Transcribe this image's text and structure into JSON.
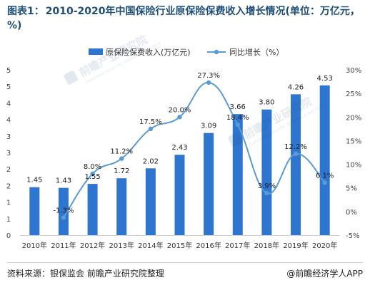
{
  "title": {
    "prefix": "图表1：",
    "text": "2010-2020年中国保险行业原保险保费收入增长情况(单位：万亿元，%)"
  },
  "footer": {
    "source": "资料来源：银保监会 前瞻产业研究院整理",
    "brand": "@前瞻经济学人APP"
  },
  "watermark": {
    "brand": "前瞻产业研究院",
    "sub": "QIANZHAN INDUSTRY RESEARCH INSTITUTE"
  },
  "chart_data": {
    "type": "bar",
    "categories": [
      "2010年",
      "2011年",
      "2012年",
      "2013年",
      "2014年",
      "2015年",
      "2016年",
      "2017年",
      "2018年",
      "2019年",
      "2020年"
    ],
    "series": [
      {
        "name": "原保险保费收入(万亿元)",
        "type": "bar",
        "axis": "left",
        "values": [
          1.45,
          1.43,
          1.55,
          1.72,
          2.02,
          2.43,
          3.09,
          3.66,
          3.8,
          4.26,
          4.53
        ],
        "labels": [
          "1.45",
          "1.43",
          "1.55",
          "1.72",
          "2.02",
          "2.43",
          "3.09",
          "3.66",
          "3.80",
          "4.26",
          "4.53"
        ],
        "color": "#2e75d0"
      },
      {
        "name": "同比增长（%）",
        "type": "line",
        "axis": "right",
        "values": [
          null,
          -1.3,
          8.0,
          11.2,
          17.5,
          20.0,
          27.3,
          18.4,
          3.9,
          12.2,
          6.1
        ],
        "labels": [
          "",
          "-1.3%",
          "8.0%",
          "11.2%",
          "17.5%",
          "20.0%",
          "27.3%",
          "18.4%",
          "3.9%",
          "12.2%",
          "6.1%"
        ],
        "color": "#5b9bd5"
      }
    ],
    "left_axis": {
      "ylim": [
        0,
        5
      ],
      "ticks": [
        0,
        0.5,
        1,
        1.5,
        2,
        2.5,
        3,
        3.5,
        4,
        4.5,
        5
      ],
      "tick_labels": [
        "0",
        "1",
        "1",
        "2",
        "2",
        "3",
        "3",
        "4",
        "4",
        "5",
        "5"
      ]
    },
    "right_axis": {
      "ylim": [
        -5,
        30
      ],
      "ticks": [
        -5,
        0,
        5,
        10,
        15,
        20,
        25,
        30
      ],
      "tick_labels": [
        "-5%",
        "0%",
        "5%",
        "10%",
        "15%",
        "20%",
        "25%",
        "30%"
      ]
    },
    "legend_position": "top-center",
    "grid": false,
    "colors": {
      "bar": "#2e75d0",
      "line": "#5b9bd5",
      "axis": "#d0d0d0",
      "title": "#1f4e79"
    }
  }
}
